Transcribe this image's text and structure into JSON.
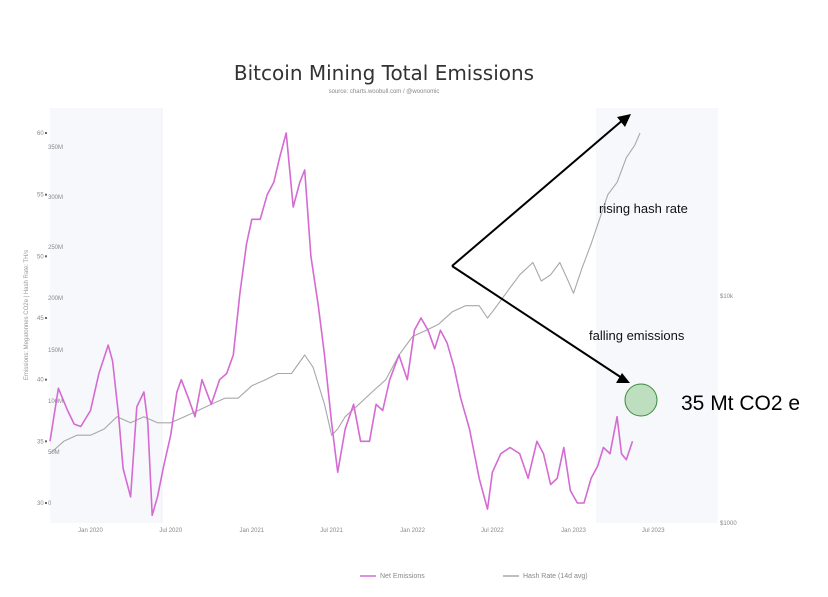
{
  "chart_data": {
    "type": "line",
    "title": "Bitcoin Mining Total Emissions",
    "subtitle": "source: charts.woobull.com / @woonomic",
    "ylabel": "Emissions: Megatonnes CO2e | Hash Rate: TH/s",
    "x_tick_labels": [
      "Jan 2020",
      "Jul 2020",
      "Jan 2021",
      "Jul 2021",
      "Jan 2022",
      "Jul 2022",
      "Jan 2023",
      "Jul 2023"
    ],
    "y_left_ticks": [
      "60",
      "55",
      "50",
      "45",
      "40",
      "35",
      "30"
    ],
    "y_left_inner_ticks": [
      "350M",
      "300M",
      "250M",
      "200M",
      "150M",
      "100M",
      "50M",
      "0"
    ],
    "y_right_ticks": [
      "$10k",
      "$1000"
    ],
    "ylim": [
      28,
      61
    ],
    "series": [
      {
        "name": "Net Emissions",
        "color": "#d56ad2",
        "x": [
          "2019-10-01",
          "2019-10-20",
          "2019-11-10",
          "2019-11-25",
          "2019-12-10",
          "2020-01-01",
          "2020-01-20",
          "2020-02-10",
          "2020-02-20",
          "2020-03-05",
          "2020-03-15",
          "2020-04-01",
          "2020-04-15",
          "2020-05-01",
          "2020-05-10",
          "2020-05-20",
          "2020-06-01",
          "2020-06-15",
          "2020-07-01",
          "2020-07-15",
          "2020-07-25",
          "2020-08-10",
          "2020-08-25",
          "2020-09-10",
          "2020-10-01",
          "2020-10-20",
          "2020-11-05",
          "2020-11-20",
          "2020-12-05",
          "2020-12-20",
          "2021-01-01",
          "2021-01-20",
          "2021-02-05",
          "2021-02-20",
          "2021-03-05",
          "2021-03-20",
          "2021-04-05",
          "2021-04-20",
          "2021-05-01",
          "2021-05-15",
          "2021-06-01",
          "2021-06-15",
          "2021-07-01",
          "2021-07-15",
          "2021-08-01",
          "2021-08-20",
          "2021-09-05",
          "2021-09-25",
          "2021-10-10",
          "2021-10-25",
          "2021-11-10",
          "2021-12-01",
          "2021-12-20",
          "2022-01-05",
          "2022-01-20",
          "2022-02-05",
          "2022-02-20",
          "2022-03-05",
          "2022-03-20",
          "2022-04-05",
          "2022-04-20",
          "2022-05-10",
          "2022-06-01",
          "2022-06-20",
          "2022-07-01",
          "2022-07-20",
          "2022-08-10",
          "2022-09-01",
          "2022-09-20",
          "2022-10-10",
          "2022-10-25",
          "2022-11-10",
          "2022-11-25",
          "2022-12-10",
          "2022-12-25",
          "2023-01-10",
          "2023-01-25",
          "2023-02-10",
          "2023-02-25",
          "2023-03-10",
          "2023-03-25",
          "2023-04-10",
          "2023-04-20",
          "2023-05-01",
          "2023-05-15"
        ],
        "values": [
          35.0,
          39.3,
          37.5,
          36.4,
          36.2,
          37.5,
          40.5,
          42.8,
          41.5,
          37.0,
          32.8,
          30.5,
          37.8,
          39.0,
          36.5,
          29.0,
          30.5,
          33.0,
          35.5,
          39.0,
          40.0,
          38.5,
          37.0,
          40.0,
          38.0,
          40.0,
          40.5,
          42.0,
          47.0,
          51.0,
          53.0,
          53.0,
          55.0,
          56.0,
          58.0,
          60.0,
          54.0,
          56.0,
          57.0,
          50.0,
          46.0,
          42.0,
          36.5,
          32.5,
          36.0,
          38.0,
          35.0,
          35.0,
          38.0,
          37.5,
          40.0,
          42.0,
          40.0,
          44.0,
          45.0,
          44.0,
          42.5,
          44.0,
          43.0,
          41.0,
          38.5,
          36.0,
          32.0,
          29.5,
          32.5,
          34.0,
          34.5,
          34.0,
          32.0,
          35.0,
          34.0,
          31.5,
          32.0,
          34.5,
          31.0,
          30.0,
          30.0,
          32.0,
          33.0,
          34.5,
          34.0,
          37.0,
          34.0,
          33.5,
          35.0
        ]
      },
      {
        "name": "Hash Rate (14d avg)",
        "color": "#a8a8a8",
        "x": [
          "2019-10-01",
          "2019-11-01",
          "2019-12-01",
          "2020-01-01",
          "2020-02-01",
          "2020-03-01",
          "2020-04-01",
          "2020-05-01",
          "2020-06-01",
          "2020-07-01",
          "2020-08-01",
          "2020-09-01",
          "2020-10-01",
          "2020-11-01",
          "2020-12-01",
          "2021-01-01",
          "2021-02-01",
          "2021-03-01",
          "2021-04-01",
          "2021-05-01",
          "2021-05-20",
          "2021-06-15",
          "2021-07-01",
          "2021-07-15",
          "2021-08-01",
          "2021-09-01",
          "2021-10-01",
          "2021-11-01",
          "2021-12-01",
          "2022-01-01",
          "2022-02-01",
          "2022-03-01",
          "2022-04-01",
          "2022-05-01",
          "2022-06-01",
          "2022-06-20",
          "2022-07-01",
          "2022-08-01",
          "2022-09-01",
          "2022-10-01",
          "2022-10-20",
          "2022-11-10",
          "2022-12-01",
          "2022-12-20",
          "2023-01-01",
          "2023-01-20",
          "2023-02-10",
          "2023-03-01",
          "2023-03-20",
          "2023-04-10",
          "2023-05-01",
          "2023-05-20",
          "2023-06-01"
        ],
        "values": [
          34.0,
          35.0,
          35.5,
          35.5,
          36.0,
          37.0,
          36.5,
          37.0,
          36.5,
          36.5,
          37.0,
          37.5,
          38.0,
          38.5,
          38.5,
          39.5,
          40.0,
          40.5,
          40.5,
          42.0,
          41.0,
          38.0,
          35.5,
          36.0,
          37.0,
          38.0,
          39.0,
          40.0,
          42.0,
          43.5,
          44.0,
          44.5,
          45.5,
          46.0,
          46.0,
          45.0,
          45.5,
          47.0,
          48.5,
          49.5,
          48.0,
          48.5,
          49.5,
          48.0,
          47.0,
          49.0,
          51.0,
          53.0,
          55.0,
          56.0,
          58.0,
          59.0,
          60.0
        ]
      }
    ],
    "legend_position": "bottom",
    "grid": false
  },
  "annotations": {
    "rising": "rising hash rate",
    "falling": "falling emissions",
    "value": "35 Mt CO2 e"
  },
  "colors": {
    "emissions": "#d56ad2",
    "hashrate": "#a8a8a8",
    "highlight_fill": "#b8dcb8",
    "highlight_stroke": "#3c8a3c",
    "shading": "#f6f8fc"
  }
}
